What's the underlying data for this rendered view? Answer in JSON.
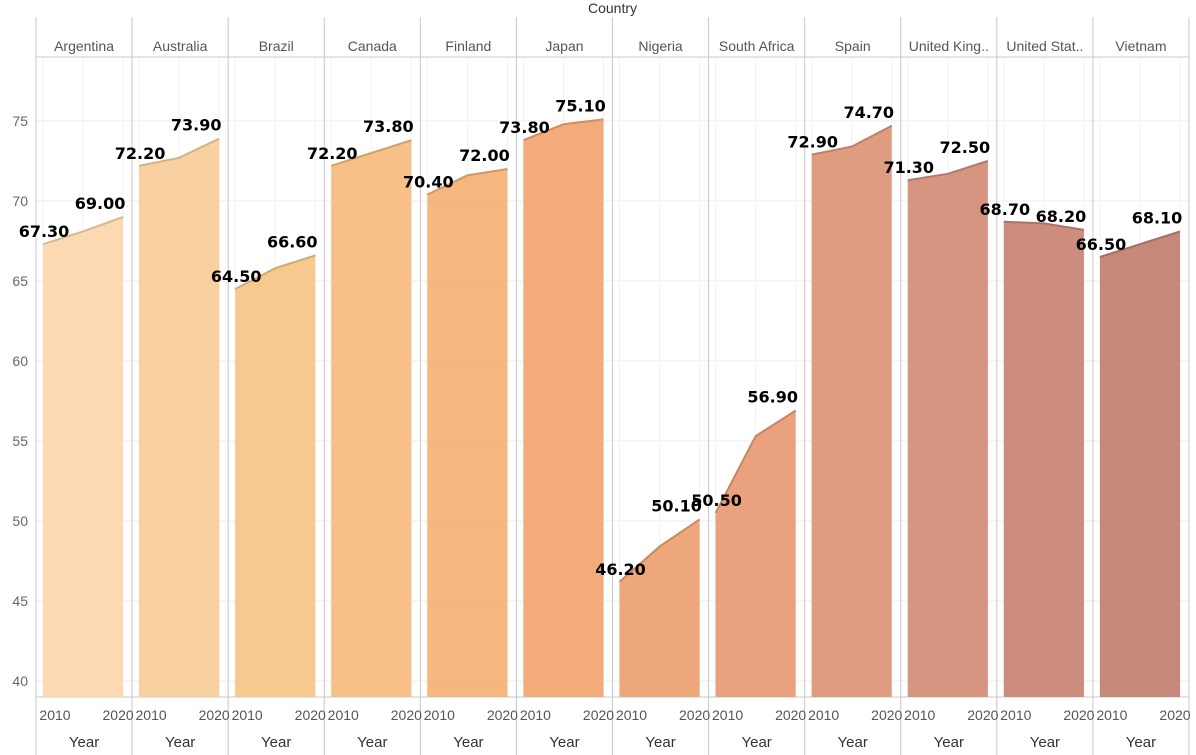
{
  "chart_data": {
    "type": "area",
    "title": "Country",
    "xlabel": "Year",
    "ylabel": "",
    "ylim": [
      39,
      79
    ],
    "yticks": [
      40,
      45,
      50,
      55,
      60,
      65,
      70,
      75
    ],
    "x": [
      2010,
      2015,
      2020
    ],
    "xticks": [
      "2010",
      "2020"
    ],
    "grid": true,
    "series": [
      {
        "name": "Argentina",
        "label": "Argentina",
        "values": [
          67.3,
          68.1,
          69.0
        ],
        "data_labels": [
          "67.30",
          "69.00"
        ],
        "color": "#fcd7ae"
      },
      {
        "name": "Australia",
        "label": "Australia",
        "values": [
          72.2,
          72.7,
          73.9
        ],
        "data_labels": [
          "72.20",
          "73.90"
        ],
        "color": "#f9cf9b"
      },
      {
        "name": "Brazil",
        "label": "Brazil",
        "values": [
          64.5,
          65.8,
          66.6
        ],
        "data_labels": [
          "64.50",
          "66.60"
        ],
        "color": "#f7c688"
      },
      {
        "name": "Canada",
        "label": "Canada",
        "values": [
          72.2,
          73.0,
          73.8
        ],
        "data_labels": [
          "72.20",
          "73.80"
        ],
        "color": "#f6bd7f"
      },
      {
        "name": "Finland",
        "label": "Finland",
        "values": [
          70.4,
          71.6,
          72.0
        ],
        "data_labels": [
          "70.40",
          "72.00"
        ],
        "color": "#f4b376"
      },
      {
        "name": "Japan",
        "label": "Japan",
        "values": [
          73.8,
          74.8,
          75.1
        ],
        "data_labels": [
          "73.80",
          "75.10"
        ],
        "color": "#f2a872"
      },
      {
        "name": "Nigeria",
        "label": "Nigeria",
        "values": [
          46.2,
          48.4,
          50.1
        ],
        "data_labels": [
          "46.20",
          "50.10"
        ],
        "color": "#eda274"
      },
      {
        "name": "South Africa",
        "label": "South Africa",
        "values": [
          50.5,
          55.3,
          56.9
        ],
        "data_labels": [
          "50.50",
          "56.90"
        ],
        "color": "#e99c76"
      },
      {
        "name": "Spain",
        "label": "Spain",
        "values": [
          72.9,
          73.4,
          74.7
        ],
        "data_labels": [
          "72.90",
          "74.70"
        ],
        "color": "#de977a"
      },
      {
        "name": "United Kingdom",
        "label": "United King..",
        "values": [
          71.3,
          71.7,
          72.5
        ],
        "data_labels": [
          "71.30",
          "72.50"
        ],
        "color": "#d48f79"
      },
      {
        "name": "United States",
        "label": "United Stat..",
        "values": [
          68.7,
          68.6,
          68.2
        ],
        "data_labels": [
          "68.70",
          "68.20"
        ],
        "color": "#c98778"
      },
      {
        "name": "Vietnam",
        "label": "Vietnam",
        "values": [
          66.5,
          67.3,
          68.1
        ],
        "data_labels": [
          "66.50",
          "68.10"
        ],
        "color": "#c28273"
      }
    ]
  }
}
